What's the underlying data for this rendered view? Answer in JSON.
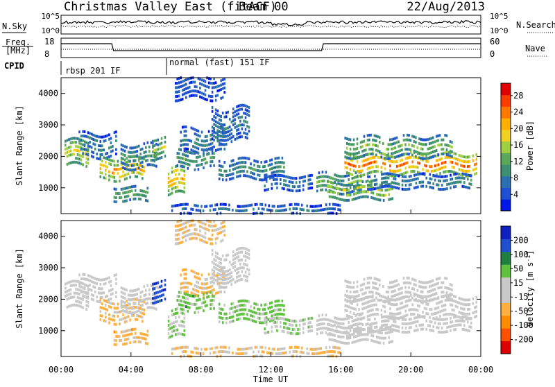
{
  "header": {
    "title": "Christmas Valley East (fitACF)",
    "beam": "Beam 00",
    "date": "22/Aug/2013"
  },
  "side_labels": {
    "nsky": "N.Sky",
    "nsearch": "N.Search",
    "freq_line1": "Freq.",
    "freq_line2": "[MHz]",
    "nave": "Nave",
    "cpid": "CPID"
  },
  "noise_panel": {
    "left_ticks": [
      "10^5",
      "10^0"
    ],
    "right_ticks": [
      "10^5",
      "10^0"
    ]
  },
  "freq_panel": {
    "left_ticks": [
      "18",
      "8"
    ],
    "right_ticks": [
      "60",
      "0"
    ]
  },
  "cpid_panel": {
    "modes": [
      {
        "label": "rbsp 201 IF",
        "start_hour": 0
      },
      {
        "label": "normal (fast) 151 IF",
        "start_hour": 6
      }
    ]
  },
  "chart_data": [
    {
      "type": "heatmap",
      "name": "power",
      "xlabel": "",
      "ylabel": "Slant Range [km]",
      "x_ticks": [
        "00:00",
        "04:00",
        "08:00",
        "12:00",
        "16:00",
        "20:00",
        "00:00"
      ],
      "xlim": [
        0,
        24
      ],
      "y_ticks": [
        "1000",
        "2000",
        "3000",
        "4000"
      ],
      "ylim": [
        180,
        4500
      ],
      "colorbar": {
        "label": "Power [dB]",
        "ticks": [
          "4",
          "8",
          "12",
          "16",
          "20",
          "24",
          "28"
        ],
        "range": [
          0,
          31
        ],
        "colors": [
          "#0018e8",
          "#1f4fd2",
          "#2d70b0",
          "#3f8f74",
          "#5aa85a",
          "#9fd040",
          "#f0d020",
          "#ffb000",
          "#ff7800",
          "#ff3c00",
          "#e00000"
        ]
      },
      "regions": [
        {
          "x0": 0.2,
          "x1": 1.6,
          "r": 2100,
          "w": 380,
          "p": 18
        },
        {
          "x0": 1.0,
          "x1": 3.2,
          "r": 2350,
          "w": 350,
          "p": 9
        },
        {
          "x0": 2.2,
          "x1": 4.8,
          "r": 1600,
          "w": 320,
          "p": 22
        },
        {
          "x0": 3.4,
          "x1": 5.6,
          "r": 2000,
          "w": 350,
          "p": 11
        },
        {
          "x0": 3.0,
          "x1": 5.0,
          "r": 800,
          "w": 200,
          "p": 13
        },
        {
          "x0": 5.2,
          "x1": 6.0,
          "r": 2250,
          "w": 300,
          "p": 16
        },
        {
          "x0": 6.1,
          "x1": 7.1,
          "r": 1200,
          "w": 400,
          "p": 21
        },
        {
          "x0": 6.8,
          "x1": 9.4,
          "r": 2500,
          "w": 350,
          "p": 9
        },
        {
          "x0": 6.6,
          "x1": 8.8,
          "r": 1900,
          "w": 260,
          "p": 12
        },
        {
          "x0": 8.6,
          "x1": 10.8,
          "r": 3000,
          "w": 500,
          "p": 8
        },
        {
          "x0": 9.0,
          "x1": 12.8,
          "r": 1600,
          "w": 280,
          "p": 10
        },
        {
          "x0": 6.5,
          "x1": 9.4,
          "r": 4200,
          "w": 350,
          "p": 6
        },
        {
          "x0": 11.6,
          "x1": 14.4,
          "r": 1150,
          "w": 200,
          "p": 8
        },
        {
          "x0": 14.6,
          "x1": 17.2,
          "r": 1150,
          "w": 280,
          "p": 14
        },
        {
          "x0": 15.2,
          "x1": 19.0,
          "r": 900,
          "w": 240,
          "p": 17
        },
        {
          "x0": 16.2,
          "x1": 23.8,
          "r": 1750,
          "w": 300,
          "p": 25
        },
        {
          "x0": 16.2,
          "x1": 22.4,
          "r": 2300,
          "w": 300,
          "p": 14
        },
        {
          "x0": 17.5,
          "x1": 23.5,
          "r": 1200,
          "w": 200,
          "p": 10
        },
        {
          "x0": 6.3,
          "x1": 16.0,
          "r": 300,
          "w": 140,
          "p": 7
        }
      ]
    },
    {
      "type": "heatmap",
      "name": "velocity",
      "xlabel": "Time UT",
      "ylabel": "Slant Range [km]",
      "x_ticks": [
        "00:00",
        "04:00",
        "08:00",
        "12:00",
        "16:00",
        "20:00",
        "00:00"
      ],
      "xlim": [
        0,
        24
      ],
      "y_ticks": [
        "1000",
        "2000",
        "3000",
        "4000"
      ],
      "ylim": [
        180,
        4500
      ],
      "colorbar": {
        "label": "Velocity [m s^-1]",
        "ticks": [
          "200",
          "100",
          "50",
          "15",
          "-15",
          "-50",
          "-100",
          "-200"
        ],
        "range": [
          -250,
          250
        ],
        "colors": [
          "#dd0000",
          "#ff5000",
          "#ff8c00",
          "#ffb040",
          "#c8c8c8",
          "#c8c8c8",
          "#60c040",
          "#208040",
          "#2050d0",
          "#1020c0"
        ]
      },
      "regions": [
        {
          "x0": 0.2,
          "x1": 1.6,
          "r": 2100,
          "w": 380,
          "p": -10
        },
        {
          "x0": 1.0,
          "x1": 3.2,
          "r": 2350,
          "w": 350,
          "p": 0
        },
        {
          "x0": 2.2,
          "x1": 4.8,
          "r": 1600,
          "w": 320,
          "p": -60
        },
        {
          "x0": 3.4,
          "x1": 5.6,
          "r": 2000,
          "w": 350,
          "p": 5
        },
        {
          "x0": 3.0,
          "x1": 5.0,
          "r": 800,
          "w": 200,
          "p": -70
        },
        {
          "x0": 5.2,
          "x1": 6.0,
          "r": 2250,
          "w": 300,
          "p": 180
        },
        {
          "x0": 6.1,
          "x1": 7.1,
          "r": 1200,
          "w": 400,
          "p": 40
        },
        {
          "x0": 6.8,
          "x1": 9.4,
          "r": 2500,
          "w": 350,
          "p": -60
        },
        {
          "x0": 6.6,
          "x1": 8.8,
          "r": 1900,
          "w": 260,
          "p": 70
        },
        {
          "x0": 8.6,
          "x1": 10.8,
          "r": 3000,
          "w": 500,
          "p": 0
        },
        {
          "x0": 9.0,
          "x1": 12.8,
          "r": 1600,
          "w": 280,
          "p": 60
        },
        {
          "x0": 6.5,
          "x1": 9.4,
          "r": 4200,
          "w": 350,
          "p": -50
        },
        {
          "x0": 11.6,
          "x1": 14.4,
          "r": 1150,
          "w": 200,
          "p": 40
        },
        {
          "x0": 14.6,
          "x1": 17.2,
          "r": 1150,
          "w": 280,
          "p": 0
        },
        {
          "x0": 15.2,
          "x1": 19.0,
          "r": 900,
          "w": 240,
          "p": -5
        },
        {
          "x0": 16.2,
          "x1": 23.8,
          "r": 1750,
          "w": 300,
          "p": 0
        },
        {
          "x0": 16.2,
          "x1": 22.4,
          "r": 2300,
          "w": 300,
          "p": 0
        },
        {
          "x0": 17.5,
          "x1": 23.5,
          "r": 1200,
          "w": 200,
          "p": -5
        },
        {
          "x0": 6.3,
          "x1": 16.0,
          "r": 300,
          "w": 140,
          "p": -50
        }
      ]
    }
  ]
}
